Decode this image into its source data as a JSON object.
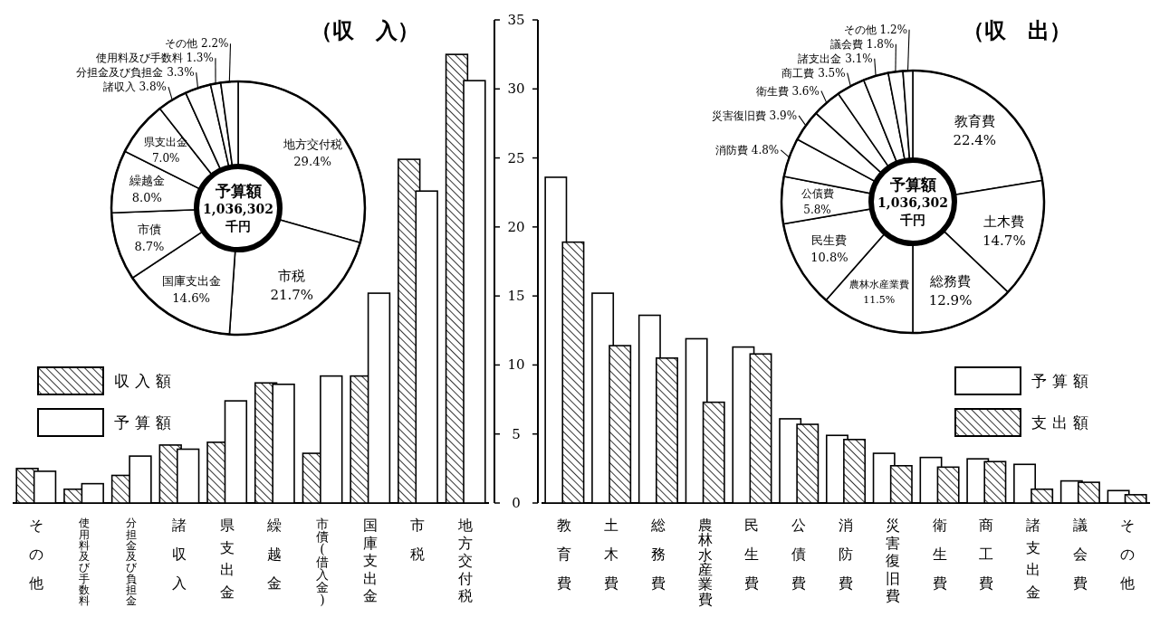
{
  "chart_data": [
    {
      "type": "bar",
      "categories": [
        "その他",
        "使用料及び手数料",
        "分担金及び負担金",
        "諸収入",
        "県支出金",
        "繰越金",
        "市債(借入金)",
        "国庫支出金",
        "市税",
        "地方交付税"
      ],
      "series": [
        {
          "name": "収入額",
          "color": "#000000",
          "values": [
            2.5,
            1.0,
            2.0,
            4.2,
            4.4,
            8.7,
            3.6,
            9.2,
            24.9,
            32.5
          ]
        },
        {
          "name": "予算額",
          "color": "#ffffff",
          "values": [
            2.3,
            1.4,
            3.4,
            3.9,
            7.4,
            8.6,
            9.2,
            15.2,
            22.6,
            30.6
          ]
        }
      ],
      "ylim": [
        0,
        35
      ],
      "yticks": [
        0,
        5,
        10,
        15,
        20,
        25,
        30,
        35
      ],
      "legend": "left"
    },
    {
      "type": "bar",
      "categories": [
        "教育費",
        "土木費",
        "総務費",
        "農林水産業費",
        "民生費",
        "公債費",
        "消防費",
        "災害復旧費",
        "衛生費",
        "商工費",
        "諸支出金",
        "議会費",
        "その他"
      ],
      "series": [
        {
          "name": "予算額",
          "color": "#ffffff",
          "values": [
            23.6,
            15.2,
            13.6,
            11.9,
            11.3,
            6.1,
            4.9,
            3.6,
            3.3,
            3.2,
            2.8,
            1.6,
            0.9
          ]
        },
        {
          "name": "支出額",
          "color": "#000000",
          "values": [
            18.9,
            11.4,
            10.5,
            7.3,
            10.8,
            5.7,
            4.6,
            2.7,
            2.6,
            3.0,
            1.0,
            1.5,
            0.6
          ]
        }
      ],
      "ylim": [
        0,
        35
      ],
      "yticks": [
        0,
        5,
        10,
        15,
        20,
        25,
        30,
        35
      ],
      "tick_labels": "x",
      "legend": "right"
    },
    {
      "type": "donut",
      "title": "（収　入）",
      "categories": [
        "地方交付税",
        "市税",
        "国庫支出金",
        "市債",
        "繰越金",
        "県支出金",
        "諸収入",
        "分担金及び負担金",
        "使用料及び手数料",
        "その他"
      ],
      "values": [
        29.4,
        21.7,
        14.6,
        8.7,
        8.0,
        7.0,
        3.8,
        3.3,
        1.3,
        2.2
      ],
      "value_labels": [
        "29.4%",
        "21.7%",
        "14.6%",
        "8.7%",
        "8.0%",
        "7.0%",
        "3.8%",
        "3.3%",
        "1.3%",
        "2.2%"
      ],
      "colors": [
        "#ffffff",
        "#ffffff",
        "#ffffff",
        "#ffffff",
        "#ffffff",
        "#ffffff",
        "#ffffff",
        "#ffffff",
        "#ffffff",
        "#ffffff"
      ],
      "annotations": [
        "予算額",
        "1,036,302",
        "千円"
      ]
    },
    {
      "type": "donut",
      "title": "（収　出）",
      "categories": [
        "教育費",
        "土木費",
        "総務費",
        "農林水産業費",
        "民生費",
        "公債費",
        "消防費",
        "災害復旧費",
        "衛生費",
        "商工費",
        "諸支出金",
        "議会費",
        "その他"
      ],
      "values": [
        22.4,
        14.7,
        12.9,
        11.5,
        10.8,
        5.8,
        4.8,
        3.9,
        3.6,
        3.5,
        3.1,
        1.8,
        1.2
      ],
      "value_labels": [
        "22.4%",
        "14.7%",
        "12.9%",
        "11.5%",
        "10.8%",
        "5.8%",
        "4.8%",
        "3.9%",
        "3.6%",
        "3.5%",
        "3.1%",
        "1.8%",
        "1.2%"
      ],
      "colors": [
        "#ffffff",
        "#ffffff",
        "#ffffff",
        "#ffffff",
        "#ffffff",
        "#ffffff",
        "#ffffff",
        "#ffffff",
        "#ffffff",
        "#ffffff",
        "#ffffff",
        "#ffffff",
        "#ffffff"
      ],
      "annotations": [
        "予算額",
        "1,036,302",
        "千円"
      ]
    }
  ]
}
